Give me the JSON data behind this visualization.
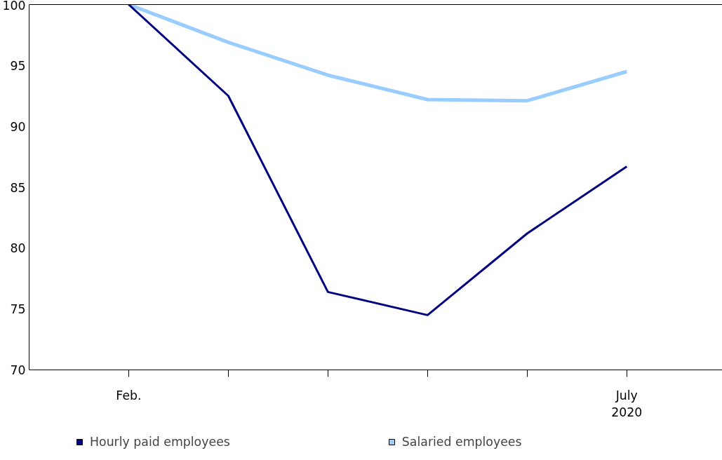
{
  "chart_data": {
    "type": "line",
    "categories": [
      "Feb.",
      null,
      null,
      null,
      null,
      "July\n2020"
    ],
    "series": [
      {
        "name": "Hourly paid employees",
        "color": "#000080",
        "values": [
          100,
          92.5,
          76.4,
          74.5,
          81.2,
          86.7
        ]
      },
      {
        "name": "Salaried employees",
        "color": "#99ccff",
        "values": [
          100,
          96.9,
          94.2,
          92.2,
          92.1,
          94.5
        ]
      }
    ],
    "ylim": [
      70,
      100
    ],
    "yticks": [
      70,
      75,
      80,
      85,
      90,
      95,
      100
    ],
    "grid": false,
    "legend": "bottom",
    "marker": "none",
    "line_style": "solid"
  }
}
